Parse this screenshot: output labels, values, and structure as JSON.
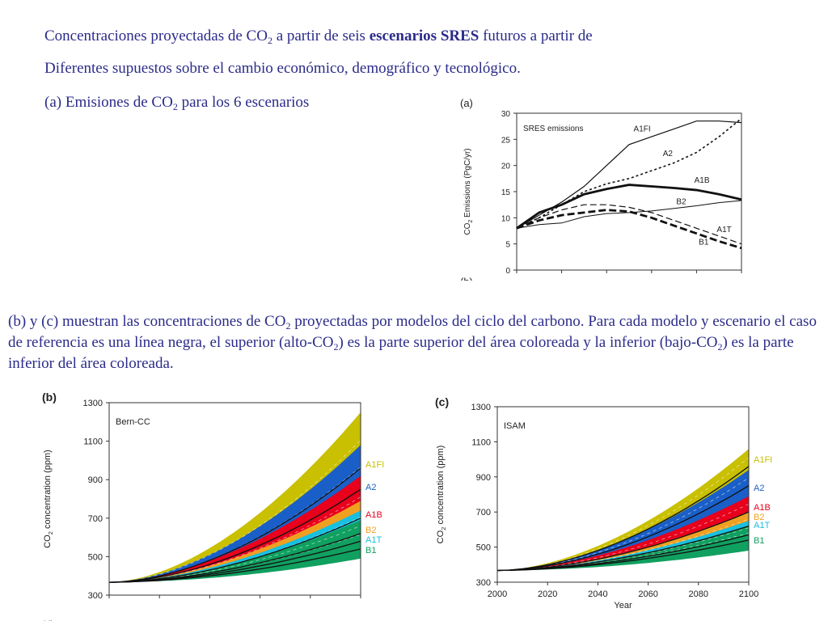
{
  "intro": {
    "line1_pre": "Concentraciones proyectadas de CO",
    "line1_sub": "2",
    "line1_mid": " a partir de seis ",
    "line1_bold": "escenarios SRES",
    "line1_post": " futuros a partir de",
    "line2": "Diferentes supuestos sobre el cambio económico, demográfico y tecnológico.",
    "line3_pre": "(a) Emisiones de CO",
    "line3_sub": "2",
    "line3_post": " para los 6 escenarios"
  },
  "paragraph": {
    "p1": "(b) y (c) muestran las concentraciones de CO",
    "s1": "2",
    "p2": " proyectadas por modelos del ciclo del carbono. Para cada modelo y escenario el caso de referencia es una línea negra, el superior (alto-CO",
    "s2": "2",
    "p3": ") es la parte superior del área coloreada y la inferior (bajo-CO",
    "s3": "2",
    "p4": ") es la parte inferior del área coloreada."
  },
  "colors": {
    "text": "#2b2b8a",
    "A1FI": "#c8c000",
    "A2": "#1a5fc8",
    "A1B": "#e8001c",
    "B2": "#f0a020",
    "A1T": "#18c0e0",
    "B1": "#10a060"
  },
  "chart_data": [
    {
      "id": "a",
      "type": "line",
      "panel_label": "(a)",
      "title": "SRES emissions",
      "ylabel": "CO2 Emissions (PgC/yr)",
      "ylim": [
        0,
        30
      ],
      "yticks": [
        0,
        5,
        10,
        15,
        20,
        25,
        30
      ],
      "xlim": [
        2000,
        2100
      ],
      "series": [
        {
          "name": "A1FI",
          "x": [
            2000,
            2010,
            2020,
            2030,
            2040,
            2050,
            2060,
            2070,
            2080,
            2090,
            2100
          ],
          "y": [
            8,
            10.5,
            13,
            16,
            20,
            24,
            25.5,
            27,
            28.5,
            28.5,
            28.2
          ]
        },
        {
          "name": "A2",
          "x": [
            2000,
            2010,
            2020,
            2030,
            2040,
            2050,
            2060,
            2070,
            2080,
            2090,
            2100
          ],
          "y": [
            8,
            10,
            12.5,
            15,
            16.5,
            17.5,
            19,
            20.5,
            22.5,
            25.5,
            29
          ]
        },
        {
          "name": "A1B",
          "x": [
            2000,
            2010,
            2020,
            2030,
            2040,
            2050,
            2060,
            2070,
            2080,
            2090,
            2100
          ],
          "y": [
            8,
            11,
            12.5,
            14.5,
            15.5,
            16.3,
            16,
            15.7,
            15.3,
            14.5,
            13.5
          ]
        },
        {
          "name": "B2",
          "x": [
            2000,
            2010,
            2020,
            2030,
            2040,
            2050,
            2060,
            2070,
            2080,
            2090,
            2100
          ],
          "y": [
            8,
            8.7,
            9,
            10.2,
            10.8,
            11,
            11.3,
            11.8,
            12.3,
            12.9,
            13.3
          ]
        },
        {
          "name": "A1T",
          "x": [
            2000,
            2010,
            2020,
            2030,
            2040,
            2050,
            2060,
            2070,
            2080,
            2090,
            2100
          ],
          "y": [
            8,
            10,
            11.5,
            12.5,
            12.5,
            12,
            11,
            9.5,
            8,
            6.5,
            5
          ]
        },
        {
          "name": "B1",
          "x": [
            2000,
            2010,
            2020,
            2030,
            2040,
            2050,
            2060,
            2070,
            2080,
            2090,
            2100
          ],
          "y": [
            8,
            9.5,
            10.5,
            11,
            11.5,
            11.2,
            10,
            8.5,
            7,
            5.5,
            4.2
          ]
        }
      ],
      "cut_label": "(b)"
    },
    {
      "id": "b",
      "type": "area",
      "panel_label": "(b)",
      "title": "Bern-CC",
      "ylabel": "CO2 concentration (ppm)",
      "ylim": [
        300,
        1300
      ],
      "yticks": [
        300,
        500,
        700,
        900,
        1100,
        1300
      ],
      "xlim": [
        2000,
        2100
      ],
      "series": [
        {
          "name": "A1FI",
          "ref": 960,
          "high": 1250,
          "low": 830
        },
        {
          "name": "A2",
          "ref": 850,
          "high": 1080,
          "low": 720
        },
        {
          "name": "A1B",
          "ref": 700,
          "high": 920,
          "low": 620
        },
        {
          "name": "B2",
          "ref": 620,
          "high": 790,
          "low": 560
        },
        {
          "name": "A1T",
          "ref": 580,
          "high": 740,
          "low": 530
        },
        {
          "name": "B1",
          "ref": 540,
          "high": 690,
          "low": 490
        }
      ],
      "cut_label": "(d)"
    },
    {
      "id": "c",
      "type": "area",
      "panel_label": "(c)",
      "title": "ISAM",
      "xlabel": "Year",
      "ylabel": "CO2 concentration (ppm)",
      "ylim": [
        300,
        1300
      ],
      "yticks": [
        300,
        500,
        700,
        900,
        1100,
        1300
      ],
      "xlim": [
        2000,
        2100
      ],
      "xticks": [
        2000,
        2020,
        2040,
        2060,
        2080,
        2100
      ],
      "series": [
        {
          "name": "A1FI",
          "ref": 960,
          "high": 1060,
          "low": 820
        },
        {
          "name": "A2",
          "ref": 850,
          "high": 940,
          "low": 740
        },
        {
          "name": "A1B",
          "ref": 700,
          "high": 790,
          "low": 620
        },
        {
          "name": "B2",
          "ref": 620,
          "high": 700,
          "low": 560
        },
        {
          "name": "A1T",
          "ref": 570,
          "high": 650,
          "low": 520
        },
        {
          "name": "B1",
          "ref": 540,
          "high": 620,
          "low": 480
        }
      ]
    }
  ]
}
